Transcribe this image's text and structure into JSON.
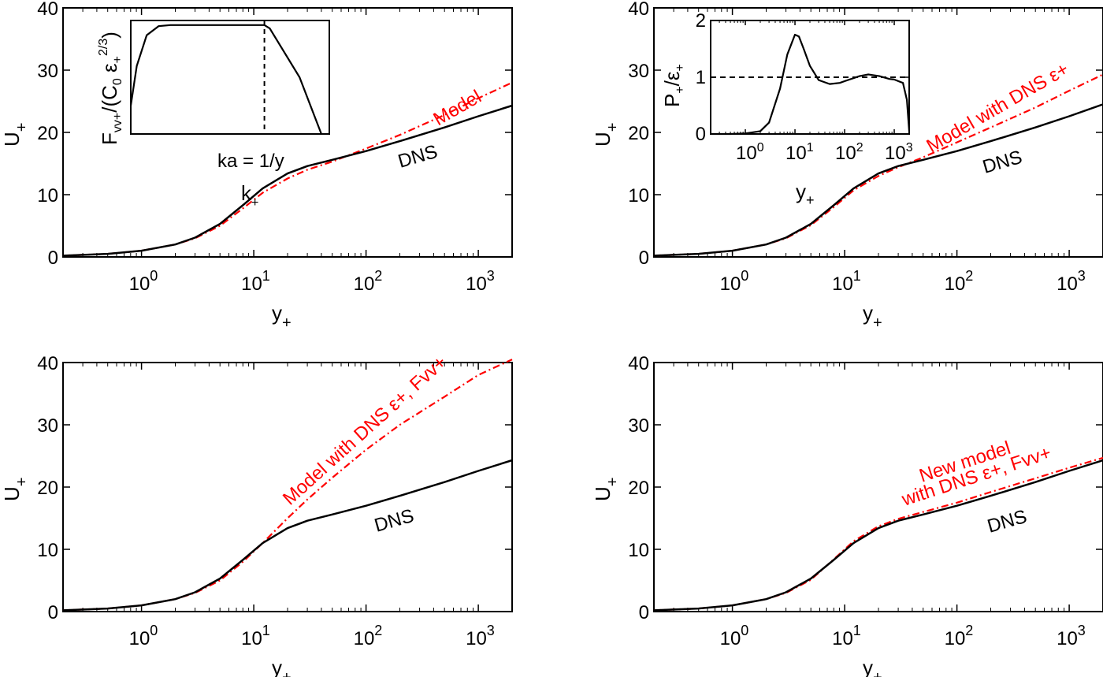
{
  "figure": {
    "colors": {
      "dns": "#000000",
      "model": "#ff0000",
      "axes": "#000000",
      "background": "#ffffff"
    }
  },
  "chart_data": [
    {
      "id": "top-left",
      "type": "line",
      "xscale": "log",
      "xlim": [
        0.2,
        2000
      ],
      "ylim": [
        0,
        40
      ],
      "xticks": [
        1,
        10,
        100,
        1000
      ],
      "xtick_labels": [
        "10^0",
        "10^1",
        "10^2",
        "10^3"
      ],
      "yticks": [
        0,
        10,
        20,
        30,
        40
      ],
      "ytick_labels": [
        "0",
        "10",
        "20",
        "30",
        "40"
      ],
      "xlabel": "y+",
      "ylabel": "U+",
      "series": [
        {
          "name": "DNS",
          "style": "solid",
          "color": "#000000",
          "x": [
            0.2,
            0.5,
            1,
            2,
            3,
            5,
            8,
            12,
            20,
            30,
            50,
            100,
            200,
            500,
            1000,
            2000
          ],
          "y": [
            0.2,
            0.5,
            1.0,
            2.0,
            3.1,
            5.3,
            8.3,
            11.0,
            13.4,
            14.6,
            15.6,
            17.0,
            18.6,
            20.8,
            22.6,
            24.3
          ]
        },
        {
          "name": "Model",
          "style": "dashdot",
          "color": "#ff0000",
          "x": [
            0.2,
            0.5,
            1,
            2,
            3,
            5,
            8,
            12,
            20,
            30,
            50,
            100,
            200,
            500,
            1000,
            2000
          ],
          "y": [
            0.2,
            0.5,
            1.0,
            2.0,
            3.0,
            5.0,
            7.8,
            10.3,
            12.6,
            14.0,
            15.3,
            17.4,
            19.6,
            22.8,
            25.5,
            28.0
          ]
        }
      ],
      "annotations": [
        {
          "text": "Model",
          "color": "#ff0000",
          "x": 300,
          "y": 23,
          "angle": -30
        },
        {
          "text": "DNS",
          "color": "#000000",
          "x": 400,
          "y": 17.1,
          "angle": -16
        }
      ],
      "inset": {
        "type": "line",
        "ylabel": "Fvv+/(C0 ε+^(2/3))",
        "xlabel": "k+",
        "marker_label": "ka = 1/y",
        "series": [
          {
            "name": "",
            "style": "solid",
            "color": "#000000",
            "x": [
              0,
              0.03,
              0.08,
              0.14,
              0.2,
              0.3,
              0.5,
              0.673,
              0.7,
              0.85,
              0.96
            ],
            "y": [
              0.25,
              0.6,
              0.87,
              0.95,
              0.96,
              0.96,
              0.96,
              0.96,
              0.93,
              0.5,
              0.0
            ]
          }
        ],
        "vline": 0.673
      }
    },
    {
      "id": "top-right",
      "type": "line",
      "xscale": "log",
      "xlim": [
        0.2,
        2000
      ],
      "ylim": [
        0,
        40
      ],
      "xticks": [
        1,
        10,
        100,
        1000
      ],
      "xtick_labels": [
        "10^0",
        "10^1",
        "10^2",
        "10^3"
      ],
      "yticks": [
        0,
        10,
        20,
        30,
        40
      ],
      "ytick_labels": [
        "0",
        "10",
        "20",
        "30",
        "40"
      ],
      "xlabel": "y+",
      "ylabel": "U+",
      "series": [
        {
          "name": "DNS",
          "style": "solid",
          "color": "#000000",
          "x": [
            0.2,
            0.5,
            1,
            2,
            3,
            5,
            8,
            12,
            20,
            30,
            50,
            100,
            200,
            500,
            1000,
            2000
          ],
          "y": [
            0.2,
            0.5,
            1.0,
            2.0,
            3.1,
            5.3,
            8.3,
            11.0,
            13.4,
            14.6,
            15.6,
            17.0,
            18.6,
            20.8,
            22.6,
            24.5
          ]
        },
        {
          "name": "Model with DNS ε+",
          "style": "dashdot",
          "color": "#ff0000",
          "x": [
            0.2,
            0.5,
            1,
            2,
            3,
            5,
            8,
            12,
            20,
            30,
            50,
            100,
            200,
            500,
            1000,
            2000
          ],
          "y": [
            0.2,
            0.5,
            1.0,
            2.0,
            3.0,
            5.1,
            8.0,
            10.7,
            13.0,
            14.4,
            16.0,
            18.4,
            20.8,
            24.0,
            26.7,
            29.3
          ]
        }
      ],
      "annotations": [
        {
          "text": "Model with DNS ε+",
          "color": "#ff0000",
          "x": 200,
          "y": 24.5,
          "angle": -30
        },
        {
          "text": "DNS",
          "color": "#000000",
          "x": 400,
          "y": 17.1,
          "angle": -16
        }
      ],
      "inset": {
        "type": "line",
        "xscale": "log",
        "xlim": [
          0.2,
          2000
        ],
        "ylim": [
          0,
          2
        ],
        "xticks": [
          1,
          10,
          100,
          1000
        ],
        "xtick_labels": [
          "10^0",
          "10^1",
          "10^2",
          "10^3"
        ],
        "yticks": [
          0,
          1,
          2
        ],
        "ytick_labels": [
          "0",
          "1",
          "2"
        ],
        "xlabel": "y+",
        "ylabel": "P+/ε+",
        "hline": 1,
        "series": [
          {
            "name": "",
            "style": "solid",
            "color": "#000000",
            "x": [
              0.2,
              0.5,
              1,
              2,
              3,
              5,
              7,
              10,
              12,
              15,
              20,
              30,
              50,
              80,
              100,
              200,
              300,
              500,
              800,
              1000,
              1500,
              1800,
              2000
            ],
            "y": [
              0.0,
              0.0,
              0.01,
              0.05,
              0.2,
              0.8,
              1.4,
              1.75,
              1.72,
              1.5,
              1.2,
              0.95,
              0.88,
              0.9,
              0.93,
              1.02,
              1.05,
              1.02,
              0.97,
              0.96,
              0.9,
              0.6,
              0.05
            ]
          }
        ]
      }
    },
    {
      "id": "bottom-left",
      "type": "line",
      "xscale": "log",
      "xlim": [
        0.2,
        2000
      ],
      "ylim": [
        0,
        40
      ],
      "xticks": [
        1,
        10,
        100,
        1000
      ],
      "xtick_labels": [
        "10^0",
        "10^1",
        "10^2",
        "10^3"
      ],
      "yticks": [
        0,
        10,
        20,
        30,
        40
      ],
      "ytick_labels": [
        "0",
        "10",
        "20",
        "30",
        "40"
      ],
      "xlabel": "y+",
      "ylabel": "U+",
      "series": [
        {
          "name": "DNS",
          "style": "solid",
          "color": "#000000",
          "x": [
            0.2,
            0.5,
            1,
            2,
            3,
            5,
            8,
            12,
            20,
            30,
            50,
            100,
            200,
            500,
            1000,
            2000
          ],
          "y": [
            0.2,
            0.5,
            1.0,
            2.0,
            3.1,
            5.3,
            8.3,
            11.0,
            13.4,
            14.6,
            15.6,
            17.0,
            18.6,
            20.8,
            22.6,
            24.3
          ]
        },
        {
          "name": "Model with DNS ε+, Fvv+",
          "style": "dashdot",
          "color": "#ff0000",
          "x": [
            0.2,
            0.5,
            1,
            2,
            3,
            5,
            8,
            12,
            20,
            30,
            50,
            100,
            200,
            500,
            1000,
            2000
          ],
          "y": [
            0.2,
            0.5,
            1.0,
            2.0,
            3.0,
            5.0,
            8.0,
            11.0,
            15.0,
            18.0,
            21.5,
            26.0,
            30.0,
            34.5,
            38.0,
            41.0
          ]
        }
      ],
      "annotations": [
        {
          "text": "Model with DNS ε+, Fvv+",
          "color": "#ff0000",
          "x": 60,
          "y": 27,
          "angle": -42
        },
        {
          "text": "DNS",
          "color": "#000000",
          "x": 85,
          "y": 15.3,
          "angle": -16
        }
      ]
    },
    {
      "id": "bottom-right",
      "type": "line",
      "xscale": "log",
      "xlim": [
        0.2,
        2000
      ],
      "ylim": [
        0,
        40
      ],
      "xticks": [
        1,
        10,
        100,
        1000
      ],
      "xtick_labels": [
        "10^0",
        "10^1",
        "10^2",
        "10^3"
      ],
      "yticks": [
        0,
        10,
        20,
        30,
        40
      ],
      "ytick_labels": [
        "0",
        "10",
        "20",
        "30",
        "40"
      ],
      "xlabel": "y+",
      "ylabel": "U+",
      "series": [
        {
          "name": "DNS",
          "style": "solid",
          "color": "#000000",
          "x": [
            0.2,
            0.5,
            1,
            2,
            3,
            5,
            8,
            12,
            20,
            30,
            50,
            100,
            200,
            500,
            1000,
            2000
          ],
          "y": [
            0.2,
            0.5,
            1.0,
            2.0,
            3.1,
            5.3,
            8.3,
            11.0,
            13.4,
            14.6,
            15.6,
            17.0,
            18.6,
            20.8,
            22.6,
            24.3
          ]
        },
        {
          "name": "New model with DNS ε+, Fvv+",
          "style": "dashdot",
          "color": "#ff0000",
          "x": [
            0.2,
            0.5,
            1,
            2,
            3,
            5,
            8,
            12,
            20,
            30,
            50,
            100,
            200,
            500,
            1000,
            2000
          ],
          "y": [
            0.2,
            0.5,
            1.0,
            2.0,
            3.0,
            5.1,
            8.4,
            11.3,
            13.7,
            14.9,
            16.0,
            17.5,
            19.2,
            21.4,
            23.1,
            24.7
          ]
        }
      ],
      "annotations": [
        {
          "text": "New model",
          "color": "#ff0000",
          "x": 230,
          "y": 24.5,
          "angle": -18
        },
        {
          "text": "with DNS ε+, Fvv+",
          "color": "#ff0000",
          "x": 200,
          "y": 21.0,
          "angle": -18
        },
        {
          "text": "DNS",
          "color": "#000000",
          "x": 430,
          "y": 15.5,
          "angle": -16
        }
      ]
    }
  ]
}
